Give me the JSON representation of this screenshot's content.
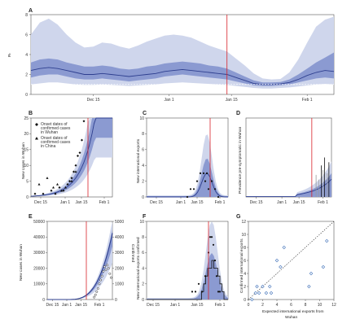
{
  "colors": {
    "band_outer": "#cfd6ec",
    "band_inner": "#8b9ad1",
    "median_line": "#2e3f8f",
    "red_line": "#d8232a",
    "gray_bar": "#9a9a9a",
    "open_diamond": "#3d6fb8"
  },
  "chart_data": [
    {
      "panel": "A",
      "type": "area",
      "ylabel": "Rₜ",
      "ylim": [
        0,
        8
      ],
      "yticks": [
        "0",
        "2",
        "4",
        "6",
        "8"
      ],
      "xticks": [
        "Dec 15",
        "Jan 1",
        "Jan 15",
        "Feb 1"
      ],
      "x_days": [
        0,
        2,
        4,
        6,
        8,
        10,
        12,
        14,
        16,
        18,
        20,
        22,
        24,
        26,
        28,
        30,
        32,
        34,
        36,
        38,
        40,
        42,
        44,
        46,
        48,
        50,
        52,
        54,
        56,
        58,
        60,
        62,
        64,
        66,
        68
      ],
      "median": [
        2.4,
        2.6,
        2.7,
        2.6,
        2.4,
        2.2,
        2.0,
        2.0,
        2.1,
        2.0,
        1.9,
        1.8,
        1.9,
        2.0,
        2.1,
        2.3,
        2.4,
        2.5,
        2.4,
        2.3,
        2.2,
        2.1,
        2.0,
        1.7,
        1.4,
        1.1,
        1.0,
        1.0,
        1.05,
        1.2,
        1.5,
        1.9,
        2.2,
        2.4,
        2.3
      ],
      "inner_low": [
        1.7,
        1.9,
        2.0,
        2.0,
        1.8,
        1.6,
        1.5,
        1.5,
        1.6,
        1.5,
        1.4,
        1.3,
        1.4,
        1.5,
        1.6,
        1.8,
        1.9,
        2.0,
        1.9,
        1.8,
        1.7,
        1.6,
        1.5,
        1.3,
        1.1,
        0.9,
        0.85,
        0.85,
        0.9,
        1.0,
        1.2,
        1.4,
        1.6,
        1.7,
        1.6
      ],
      "inner_high": [
        3.2,
        3.5,
        3.6,
        3.5,
        3.2,
        3.0,
        2.8,
        2.8,
        2.9,
        2.8,
        2.6,
        2.5,
        2.6,
        2.8,
        2.9,
        3.1,
        3.2,
        3.3,
        3.2,
        3.1,
        2.9,
        2.8,
        2.6,
        2.2,
        1.8,
        1.4,
        1.2,
        1.2,
        1.25,
        1.5,
        2.0,
        2.6,
        3.2,
        3.7,
        4.2
      ],
      "outer_low": [
        1.0,
        1.1,
        1.2,
        1.2,
        1.1,
        1.0,
        0.95,
        0.95,
        1.0,
        0.95,
        0.9,
        0.85,
        0.9,
        0.95,
        1.0,
        1.1,
        1.15,
        1.2,
        1.15,
        1.1,
        1.05,
        1.0,
        0.95,
        0.85,
        0.75,
        0.65,
        0.6,
        0.6,
        0.65,
        0.7,
        0.8,
        0.9,
        1.0,
        1.05,
        1.0
      ],
      "outer_high": [
        6.0,
        7.2,
        7.6,
        7.0,
        6.0,
        5.2,
        4.7,
        4.8,
        5.2,
        5.1,
        4.8,
        4.6,
        4.9,
        5.3,
        5.6,
        5.9,
        6.0,
        5.9,
        5.7,
        5.3,
        4.9,
        4.6,
        4.3,
        3.6,
        2.9,
        2.1,
        1.6,
        1.5,
        1.55,
        2.2,
        3.5,
        5.2,
        6.8,
        7.5,
        7.8
      ],
      "reference_line_y": 1,
      "red_line_x_day": 44
    },
    {
      "panel": "B",
      "type": "scatter",
      "ylabel": "New cases in Wuhan",
      "ylim": [
        0,
        25
      ],
      "yticks": [
        "0",
        "5",
        "10",
        "15",
        "20",
        "25"
      ],
      "xticks": [
        "Dec 15",
        "Jan 1",
        "Jan 15",
        "Feb 1"
      ],
      "legend": [
        "Onset dates of confirmed cases in Wuhan",
        "Onset dates of confirmed cases in China"
      ],
      "legend_position": "top-left",
      "wuhan_points": [
        [
          2,
          1
        ],
        [
          6,
          1
        ],
        [
          10,
          2
        ],
        [
          12,
          1
        ],
        [
          14,
          3
        ],
        [
          16,
          2
        ],
        [
          18,
          4
        ],
        [
          19,
          5
        ],
        [
          20,
          6
        ],
        [
          21,
          8
        ],
        [
          22,
          10
        ],
        [
          23,
          13
        ],
        [
          24,
          14
        ],
        [
          25,
          18
        ],
        [
          26,
          24
        ]
      ],
      "china_points": [
        [
          4,
          4
        ],
        [
          8,
          6
        ],
        [
          11,
          3
        ],
        [
          13,
          4
        ],
        [
          15,
          2
        ],
        [
          17,
          3
        ],
        [
          20,
          5
        ],
        [
          22,
          8
        ]
      ],
      "red_line_x_day": 28
    },
    {
      "panel": "C",
      "type": "scatter",
      "ylabel": "New international exports",
      "ylim": [
        0,
        10
      ],
      "yticks": [
        "0",
        "2",
        "4",
        "6",
        "8",
        "10"
      ],
      "xticks": [
        "Dec 15",
        "Jan 1",
        "Jan 15",
        "Feb 1"
      ],
      "points": [
        [
          25,
          0
        ],
        [
          27,
          1
        ],
        [
          29,
          1
        ],
        [
          31,
          2
        ],
        [
          33,
          3
        ],
        [
          35,
          3
        ],
        [
          36,
          2
        ],
        [
          37,
          3
        ],
        [
          38,
          1
        ],
        [
          40,
          2
        ],
        [
          42,
          1
        ],
        [
          44,
          0
        ]
      ],
      "red_line_x_day": 39
    },
    {
      "panel": "D",
      "type": "bar",
      "ylabel": "Prevalence pre-symptomatic in Wuhan",
      "xticks": [
        "Dec 15",
        "Jan 1",
        "Jan 15",
        "Feb 1"
      ],
      "red_line_x_day": 41
    },
    {
      "panel": "E",
      "type": "line",
      "ylabel": "New cases in Wuhan",
      "ylabel_right": "Confirmed",
      "ylim": [
        0,
        50000
      ],
      "yticks": [
        "0",
        "10000",
        "20000",
        "30000",
        "40000",
        "50000"
      ],
      "yticks_right": [
        "0",
        "1000",
        "2000",
        "3000",
        "4000",
        "5000"
      ],
      "xticks": [
        "Dec 15",
        "Jan 1",
        "Jan 15",
        "Feb 1"
      ],
      "red_line_x_day": 40
    },
    {
      "panel": "F",
      "type": "scatter",
      "ylabel": "New international exports confirmed",
      "ylim": [
        0,
        10
      ],
      "yticks": [
        "0",
        "2",
        "4",
        "6",
        "8",
        "10"
      ],
      "xticks": [
        "Dec 15",
        "Jan 1",
        "Jan 15",
        "Feb 1"
      ],
      "points": [
        [
          28,
          1
        ],
        [
          30,
          1
        ],
        [
          32,
          2
        ],
        [
          34,
          1
        ],
        [
          36,
          3
        ],
        [
          38,
          6
        ],
        [
          39,
          8
        ],
        [
          40,
          8
        ],
        [
          41,
          7
        ],
        [
          42,
          5
        ],
        [
          43,
          3
        ],
        [
          44,
          1
        ],
        [
          45,
          1
        ]
      ],
      "red_line_x_day": 38
    },
    {
      "panel": "G",
      "type": "scatter",
      "xlabel": "Expected international exports from Wuhan",
      "ylabel": "Confirmed international exports",
      "xlim": [
        0,
        12
      ],
      "ylim": [
        0,
        12
      ],
      "xticks": [
        "0",
        "2",
        "4",
        "6",
        "8",
        "10",
        "12"
      ],
      "yticks": [
        "0",
        "2",
        "4",
        "6",
        "8",
        "10",
        "12"
      ],
      "points": [
        [
          0.5,
          0
        ],
        [
          1,
          1
        ],
        [
          1.2,
          2
        ],
        [
          1.5,
          1
        ],
        [
          2,
          2
        ],
        [
          2.5,
          1
        ],
        [
          3,
          2
        ],
        [
          3.2,
          1
        ],
        [
          4,
          6
        ],
        [
          4.5,
          5
        ],
        [
          5,
          8
        ],
        [
          8.5,
          2
        ],
        [
          8.8,
          4
        ],
        [
          10.5,
          5
        ],
        [
          11,
          9
        ]
      ],
      "diagonal": true
    }
  ]
}
